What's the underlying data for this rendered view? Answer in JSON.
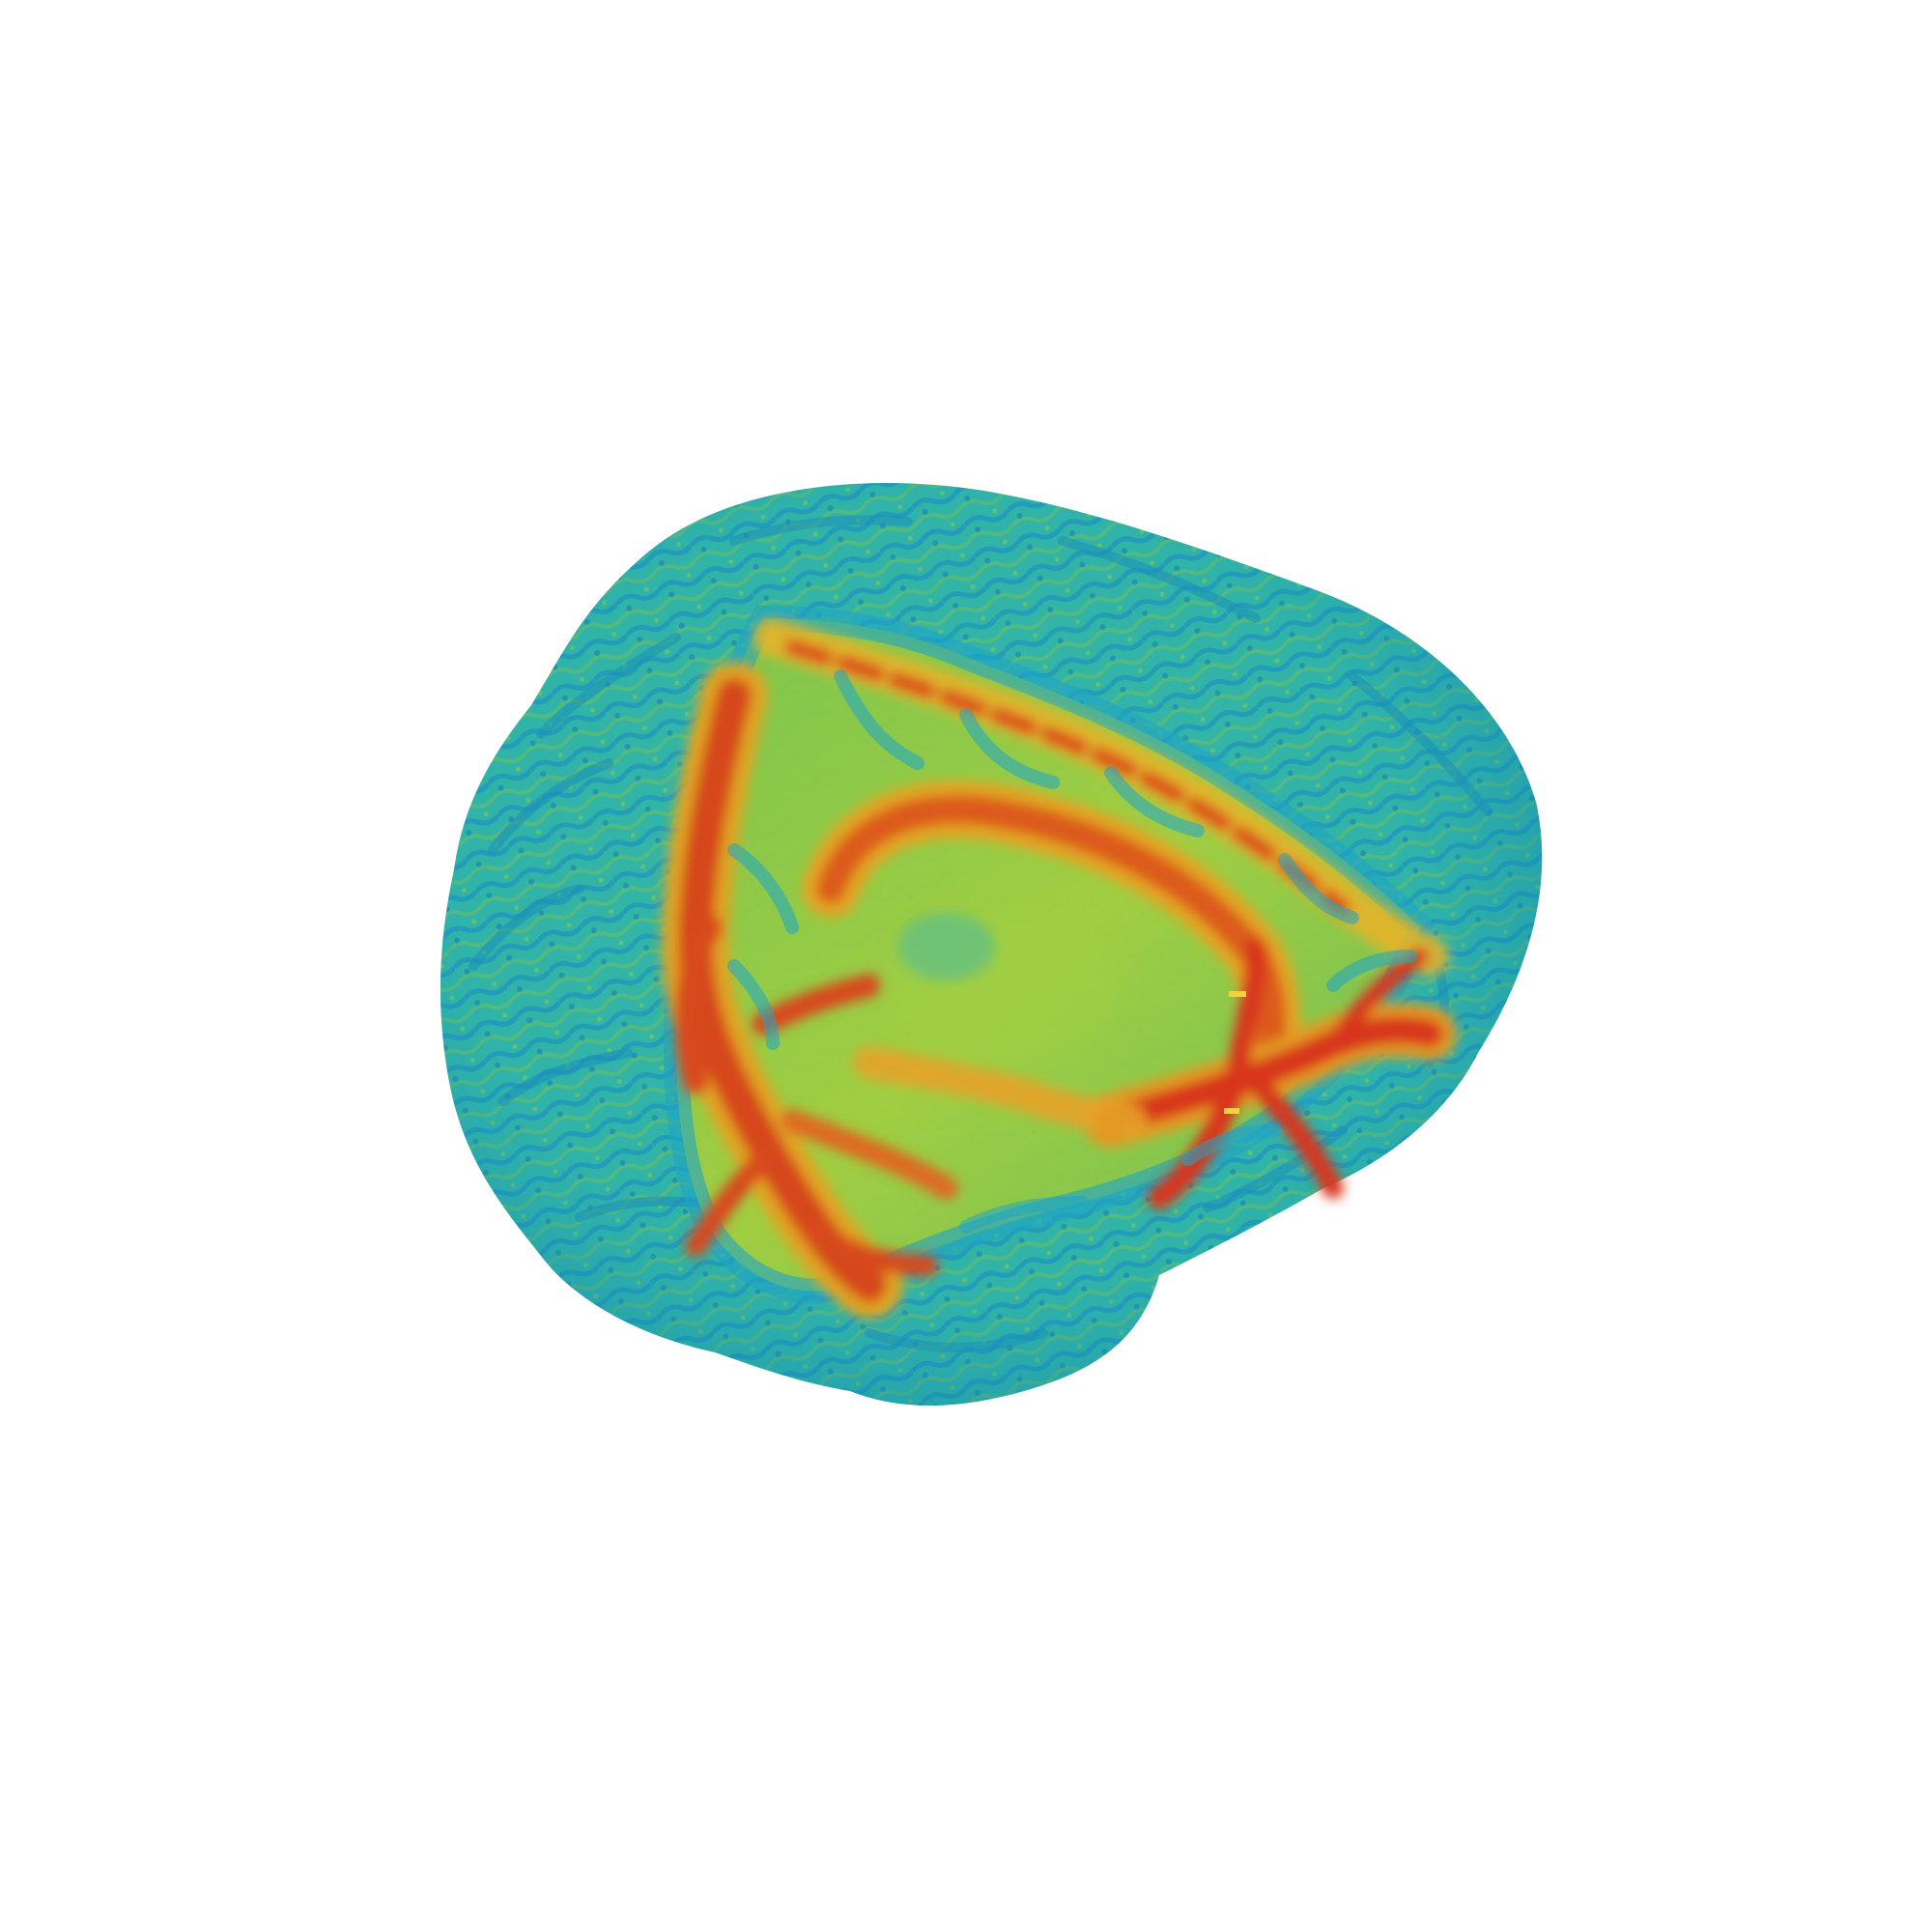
{
  "scene": {
    "background_color": "#ffffff",
    "subject": "brain-volume-render",
    "colormap": {
      "low": "#1aa7c9",
      "mid_low": "#35b9a8",
      "mid": "#9ccc45",
      "mid_high": "#e3b21f",
      "high": "#d8381c"
    },
    "surface_color": "#2fb3a4",
    "surface_shadow_color": "#1c8fb8",
    "white_matter_color": "#d9461d",
    "cut_plane_color": "#8cc63f"
  }
}
